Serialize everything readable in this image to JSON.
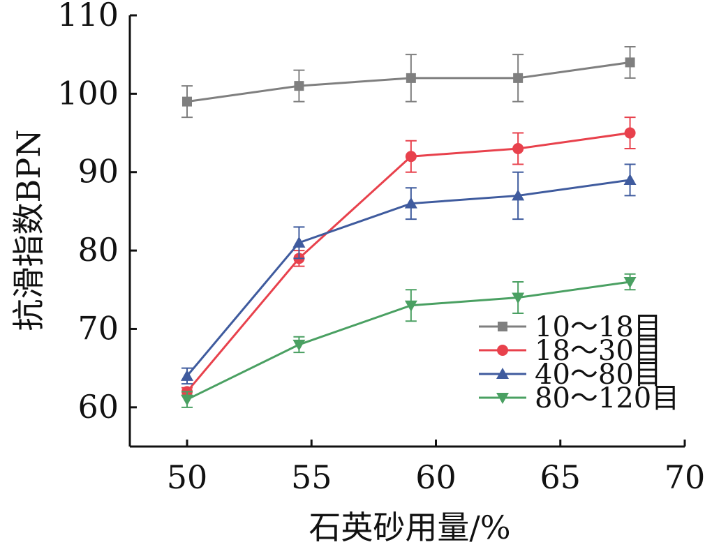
{
  "chart_data": {
    "type": "line",
    "xlabel": "石英砂用量/%",
    "ylabel": "抗滑指数BPN",
    "xlim": [
      47.7,
      70
    ],
    "ylim": [
      55,
      110
    ],
    "x_ticks": [
      50,
      55,
      60,
      65,
      70
    ],
    "y_ticks": [
      60,
      70,
      80,
      90,
      100,
      110
    ],
    "x": [
      50,
      54.5,
      59,
      63.3,
      67.8
    ],
    "grid": false,
    "legend_position": "bottom-right",
    "series": [
      {
        "name": "10～18目",
        "color": "#7f7f7f",
        "marker": "square",
        "values": [
          99,
          101,
          102,
          102,
          104
        ],
        "error": [
          2,
          2,
          3,
          3,
          2
        ]
      },
      {
        "name": "18～30目",
        "color": "#e8414c",
        "marker": "circle",
        "values": [
          62,
          79,
          92,
          93,
          95
        ],
        "error": [
          0.5,
          1,
          2,
          2,
          2
        ]
      },
      {
        "name": "40～80目",
        "color": "#3f5b9e",
        "marker": "triangle-up",
        "values": [
          64,
          81,
          86,
          87,
          89
        ],
        "error": [
          1,
          2,
          2,
          3,
          2
        ]
      },
      {
        "name": "80～120目",
        "color": "#4aa062",
        "marker": "triangle-down",
        "values": [
          61,
          68,
          73,
          74,
          76
        ],
        "error": [
          1,
          1,
          2,
          2,
          1
        ]
      }
    ]
  }
}
